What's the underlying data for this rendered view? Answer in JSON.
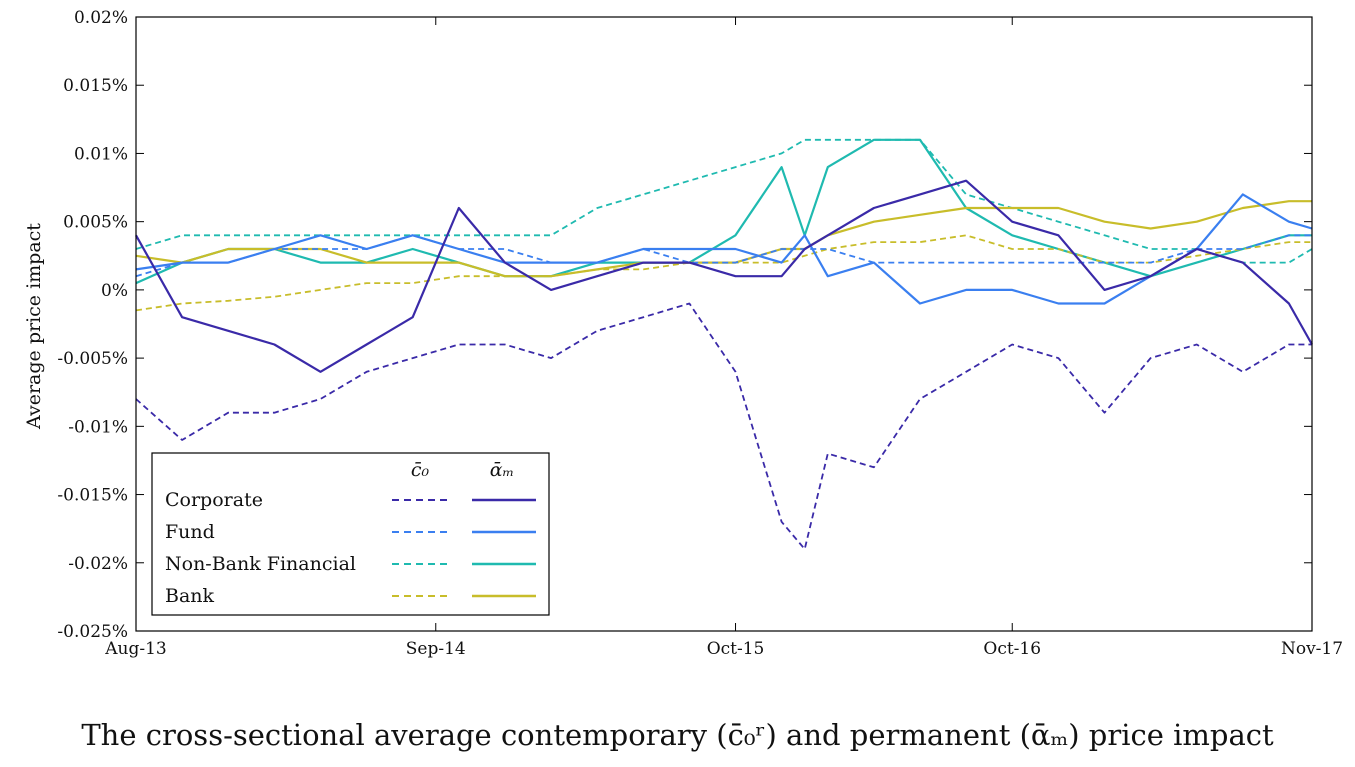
{
  "caption": "The cross-sectional average contemporary (c̄₀ʳ) and permanent (ᾱₘ) price impact",
  "chart_data": {
    "type": "line",
    "ylabel": "Average price impact",
    "xlabel": "",
    "x_ticks": [
      "Aug-13",
      "Sep-14",
      "Oct-15",
      "Oct-16",
      "Nov-17"
    ],
    "x_range": [
      "2013-08",
      "2017-11"
    ],
    "y_ticks": [
      "0.02%",
      "0.015%",
      "0.01%",
      "0.005%",
      "0%",
      "-0.005%",
      "-0.01%",
      "-0.015%",
      "-0.02%",
      "-0.025%"
    ],
    "ylim": [
      -0.025,
      0.02
    ],
    "y_unit": "%",
    "legend": {
      "placement": "bottom-left",
      "column_headers": [
        "c̄₀",
        "ᾱₘ"
      ]
    },
    "colors": {
      "Corporate": "#3a2aa8",
      "Fund": "#3a7ff0",
      "Non-Bank Financial": "#1fbab0",
      "Bank": "#c8bd2a"
    },
    "series": [
      {
        "name": "Corporate",
        "measure": "c̄₀",
        "style": "dashed",
        "x": [
          "2013-08",
          "2013-10",
          "2013-12",
          "2014-02",
          "2014-04",
          "2014-06",
          "2014-08",
          "2014-10",
          "2014-12",
          "2015-02",
          "2015-04",
          "2015-06",
          "2015-08",
          "2015-10",
          "2015-12",
          "2016-01",
          "2016-02",
          "2016-04",
          "2016-06",
          "2016-08",
          "2016-10",
          "2016-12",
          "2017-02",
          "2017-04",
          "2017-06",
          "2017-08",
          "2017-10",
          "2017-11"
        ],
        "values": [
          -0.008,
          -0.011,
          -0.009,
          -0.009,
          -0.008,
          -0.006,
          -0.005,
          -0.004,
          -0.004,
          -0.005,
          -0.003,
          -0.002,
          -0.001,
          -0.006,
          -0.017,
          -0.019,
          -0.012,
          -0.013,
          -0.008,
          -0.006,
          -0.004,
          -0.005,
          -0.009,
          -0.005,
          -0.004,
          -0.006,
          -0.004,
          -0.004
        ]
      },
      {
        "name": "Corporate",
        "measure": "ᾱₘ",
        "style": "solid",
        "x": [
          "2013-08",
          "2013-10",
          "2013-12",
          "2014-02",
          "2014-04",
          "2014-06",
          "2014-08",
          "2014-10",
          "2014-12",
          "2015-02",
          "2015-04",
          "2015-06",
          "2015-08",
          "2015-10",
          "2015-12",
          "2016-01",
          "2016-02",
          "2016-04",
          "2016-06",
          "2016-08",
          "2016-10",
          "2016-12",
          "2017-02",
          "2017-04",
          "2017-06",
          "2017-08",
          "2017-10",
          "2017-11"
        ],
        "values": [
          0.004,
          -0.002,
          -0.003,
          -0.004,
          -0.006,
          -0.004,
          -0.002,
          0.006,
          0.002,
          0.0,
          0.001,
          0.002,
          0.002,
          0.001,
          0.001,
          0.003,
          0.004,
          0.006,
          0.007,
          0.008,
          0.005,
          0.004,
          0.0,
          0.001,
          0.003,
          0.002,
          -0.001,
          -0.004
        ]
      },
      {
        "name": "Fund",
        "measure": "c̄₀",
        "style": "dashed",
        "x": [
          "2013-08",
          "2013-10",
          "2013-12",
          "2014-02",
          "2014-04",
          "2014-06",
          "2014-08",
          "2014-10",
          "2014-12",
          "2015-02",
          "2015-04",
          "2015-06",
          "2015-08",
          "2015-10",
          "2015-12",
          "2016-01",
          "2016-02",
          "2016-04",
          "2016-06",
          "2016-08",
          "2016-10",
          "2016-12",
          "2017-02",
          "2017-04",
          "2017-06",
          "2017-08",
          "2017-10",
          "2017-11"
        ],
        "values": [
          0.001,
          0.002,
          0.002,
          0.003,
          0.003,
          0.003,
          0.004,
          0.003,
          0.003,
          0.002,
          0.002,
          0.003,
          0.002,
          0.002,
          0.003,
          0.003,
          0.003,
          0.002,
          0.002,
          0.002,
          0.002,
          0.002,
          0.002,
          0.002,
          0.003,
          0.003,
          0.004,
          0.004
        ]
      },
      {
        "name": "Fund",
        "measure": "ᾱₘ",
        "style": "solid",
        "x": [
          "2013-08",
          "2013-10",
          "2013-12",
          "2014-02",
          "2014-04",
          "2014-06",
          "2014-08",
          "2014-10",
          "2014-12",
          "2015-02",
          "2015-04",
          "2015-06",
          "2015-08",
          "2015-10",
          "2015-12",
          "2016-01",
          "2016-02",
          "2016-04",
          "2016-06",
          "2016-08",
          "2016-10",
          "2016-12",
          "2017-02",
          "2017-04",
          "2017-06",
          "2017-08",
          "2017-10",
          "2017-11"
        ],
        "values": [
          0.0015,
          0.002,
          0.002,
          0.003,
          0.004,
          0.003,
          0.004,
          0.003,
          0.002,
          0.002,
          0.002,
          0.003,
          0.003,
          0.003,
          0.002,
          0.004,
          0.001,
          0.002,
          -0.001,
          0.0,
          0.0,
          -0.001,
          -0.001,
          0.001,
          0.003,
          0.007,
          0.005,
          0.0045
        ]
      },
      {
        "name": "Non-Bank Financial",
        "measure": "c̄₀",
        "style": "dashed",
        "x": [
          "2013-08",
          "2013-10",
          "2013-12",
          "2014-02",
          "2014-04",
          "2014-06",
          "2014-08",
          "2014-10",
          "2014-12",
          "2015-02",
          "2015-04",
          "2015-06",
          "2015-08",
          "2015-10",
          "2015-12",
          "2016-01",
          "2016-02",
          "2016-04",
          "2016-06",
          "2016-08",
          "2016-10",
          "2016-12",
          "2017-02",
          "2017-04",
          "2017-06",
          "2017-08",
          "2017-10",
          "2017-11"
        ],
        "values": [
          0.003,
          0.004,
          0.004,
          0.004,
          0.004,
          0.004,
          0.004,
          0.004,
          0.004,
          0.004,
          0.006,
          0.007,
          0.008,
          0.009,
          0.01,
          0.011,
          0.011,
          0.011,
          0.011,
          0.007,
          0.006,
          0.005,
          0.004,
          0.003,
          0.003,
          0.002,
          0.002,
          0.003
        ]
      },
      {
        "name": "Non-Bank Financial",
        "measure": "ᾱₘ",
        "style": "solid",
        "x": [
          "2013-08",
          "2013-10",
          "2013-12",
          "2014-02",
          "2014-04",
          "2014-06",
          "2014-08",
          "2014-10",
          "2014-12",
          "2015-02",
          "2015-04",
          "2015-06",
          "2015-08",
          "2015-10",
          "2015-12",
          "2016-01",
          "2016-02",
          "2016-04",
          "2016-06",
          "2016-08",
          "2016-10",
          "2016-12",
          "2017-02",
          "2017-04",
          "2017-06",
          "2017-08",
          "2017-10",
          "2017-11"
        ],
        "values": [
          0.0005,
          0.002,
          0.003,
          0.003,
          0.002,
          0.002,
          0.003,
          0.002,
          0.001,
          0.001,
          0.002,
          0.002,
          0.002,
          0.004,
          0.009,
          0.004,
          0.009,
          0.011,
          0.011,
          0.006,
          0.004,
          0.003,
          0.002,
          0.001,
          0.002,
          0.003,
          0.004,
          0.004
        ]
      },
      {
        "name": "Bank",
        "measure": "c̄₀",
        "style": "dashed",
        "x": [
          "2013-08",
          "2013-10",
          "2013-12",
          "2014-02",
          "2014-04",
          "2014-06",
          "2014-08",
          "2014-10",
          "2014-12",
          "2015-02",
          "2015-04",
          "2015-06",
          "2015-08",
          "2015-10",
          "2015-12",
          "2016-01",
          "2016-02",
          "2016-04",
          "2016-06",
          "2016-08",
          "2016-10",
          "2016-12",
          "2017-02",
          "2017-04",
          "2017-06",
          "2017-08",
          "2017-10",
          "2017-11"
        ],
        "values": [
          -0.0015,
          -0.001,
          -0.0008,
          -0.0005,
          0.0,
          0.0005,
          0.0005,
          0.001,
          0.001,
          0.001,
          0.0015,
          0.0015,
          0.002,
          0.002,
          0.002,
          0.0025,
          0.003,
          0.0035,
          0.0035,
          0.004,
          0.003,
          0.003,
          0.002,
          0.002,
          0.0025,
          0.003,
          0.0035,
          0.0035
        ]
      },
      {
        "name": "Bank",
        "measure": "ᾱₘ",
        "style": "solid",
        "x": [
          "2013-08",
          "2013-10",
          "2013-12",
          "2014-02",
          "2014-04",
          "2014-06",
          "2014-08",
          "2014-10",
          "2014-12",
          "2015-02",
          "2015-04",
          "2015-06",
          "2015-08",
          "2015-10",
          "2015-12",
          "2016-01",
          "2016-02",
          "2016-04",
          "2016-06",
          "2016-08",
          "2016-10",
          "2016-12",
          "2017-02",
          "2017-04",
          "2017-06",
          "2017-08",
          "2017-10",
          "2017-11"
        ],
        "values": [
          0.0025,
          0.002,
          0.003,
          0.003,
          0.003,
          0.002,
          0.002,
          0.002,
          0.001,
          0.001,
          0.0015,
          0.002,
          0.002,
          0.002,
          0.003,
          0.003,
          0.004,
          0.005,
          0.0055,
          0.006,
          0.006,
          0.006,
          0.005,
          0.0045,
          0.005,
          0.006,
          0.0065,
          0.0065
        ]
      }
    ]
  }
}
